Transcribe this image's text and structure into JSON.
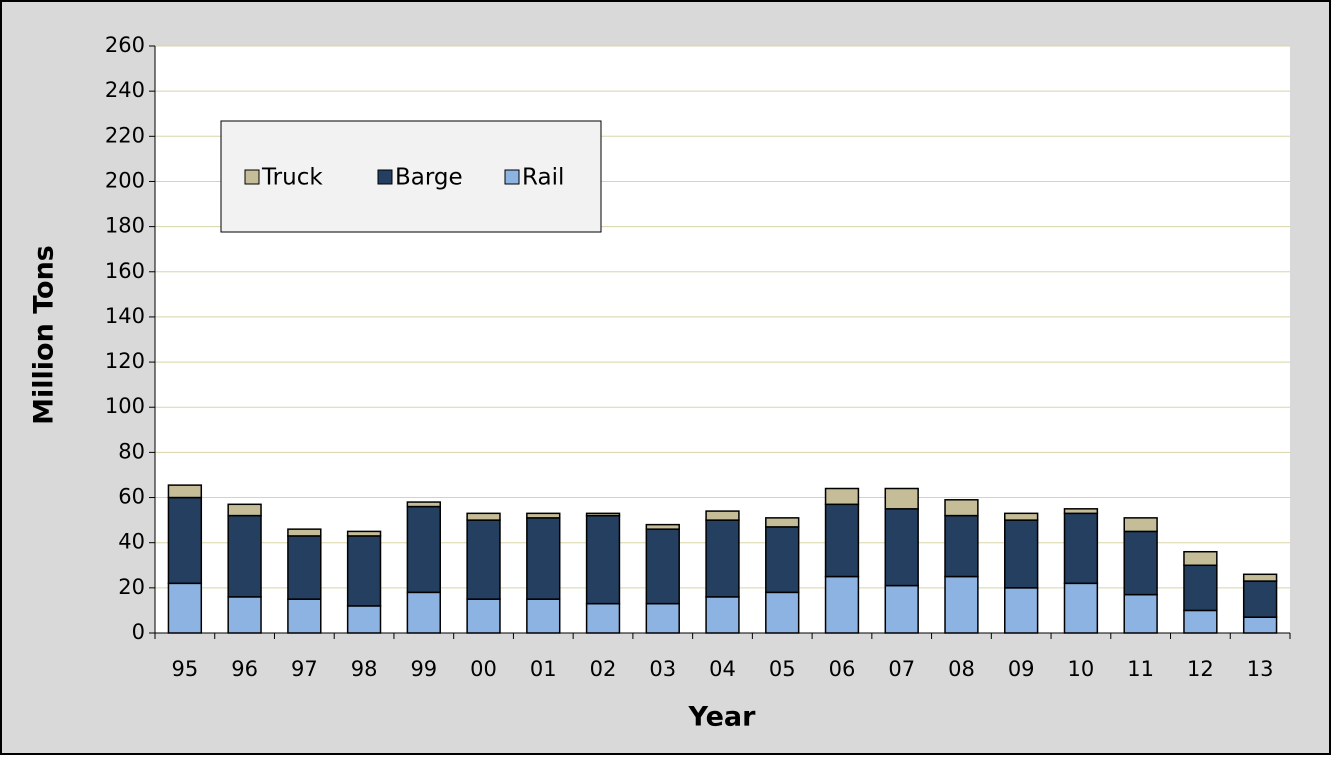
{
  "chart_data": {
    "type": "stacked_bar",
    "x_label": "Year",
    "y_label": "Million Tons",
    "categories": [
      "95",
      "96",
      "97",
      "98",
      "99",
      "00",
      "01",
      "02",
      "03",
      "04",
      "05",
      "06",
      "07",
      "08",
      "09",
      "10",
      "11",
      "12",
      "13"
    ],
    "series": [
      {
        "name": "Rail",
        "color": "#8db3e2",
        "values": [
          22,
          16,
          15,
          12,
          18,
          15,
          15,
          13,
          13,
          16,
          18,
          25,
          21,
          25,
          20,
          22,
          17,
          10,
          7
        ]
      },
      {
        "name": "Barge",
        "color": "#243f60",
        "values": [
          38,
          36,
          28,
          31,
          38,
          35,
          36,
          39,
          33,
          34,
          29,
          32,
          34,
          27,
          30,
          31,
          28,
          20,
          16
        ]
      },
      {
        "name": "Truck",
        "color": "#c4bd97",
        "values": [
          5.5,
          5,
          3,
          2,
          2,
          3,
          2,
          1,
          2,
          4,
          4,
          7,
          9,
          7,
          3,
          2,
          6,
          6,
          3
        ]
      }
    ],
    "ylim": [
      0,
      260
    ],
    "yticks": [
      0,
      20,
      40,
      60,
      80,
      100,
      120,
      140,
      160,
      180,
      200,
      220,
      240,
      260
    ],
    "grid": true,
    "legend": "top-left"
  }
}
